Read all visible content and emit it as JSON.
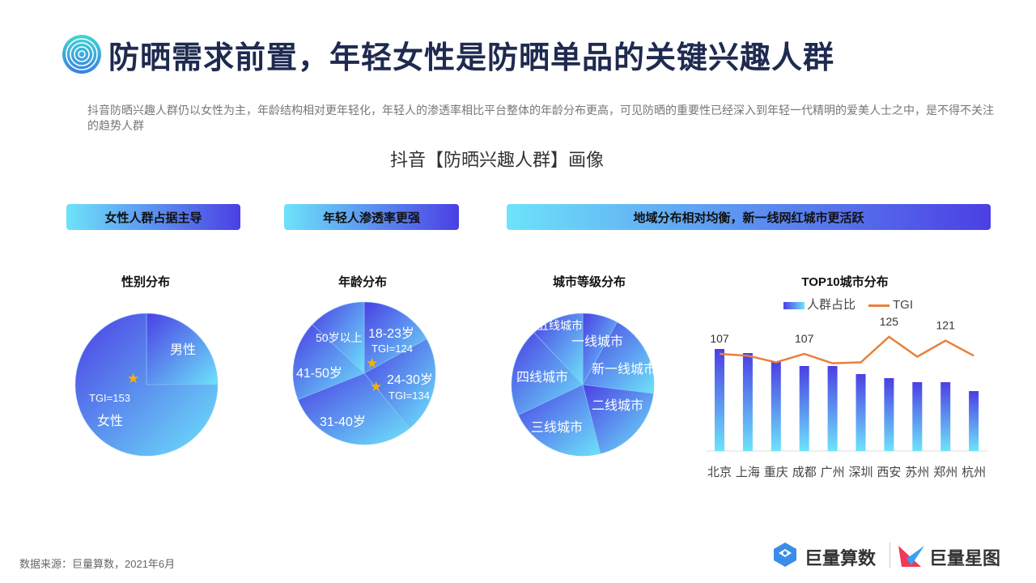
{
  "header": {
    "title": "防晒需求前置，年轻女性是防晒单品的关键兴趣人群",
    "description": "抖音防晒兴趣人群仍以女性为主，年龄结构相对更年轻化，年轻人的渗透率相比平台整体的年龄分布更高，可见防晒的重要性已经深入到年轻一代精明的爱美人士之中，是不得不关注的趋势人群",
    "subtitle": "抖音【防晒兴趣人群】画像"
  },
  "banners": [
    "女性人群占据主导",
    "年轻人渗透率更强",
    "地域分布相对均衡，新一线网红城市更活跃"
  ],
  "colors": {
    "grad_start": "#4b3fe4",
    "grad_end": "#6de3fa",
    "line": "#e8803a",
    "title": "#1e2a4f",
    "star": "#f5b400"
  },
  "chart_data": [
    {
      "type": "pie",
      "title": "性别分布",
      "categories": [
        "男性",
        "女性"
      ],
      "values": [
        25,
        75
      ],
      "annotations": [
        "TGI=153"
      ],
      "starred": [
        "女性"
      ]
    },
    {
      "type": "pie",
      "title": "年龄分布",
      "categories": [
        "18-23岁",
        "24-30岁",
        "31-40岁",
        "41-50岁",
        "50岁以上"
      ],
      "values": [
        17,
        22,
        30,
        18,
        13
      ],
      "annotations": [
        "TGI=124",
        "TGI=134"
      ],
      "starred": [
        "18-23岁",
        "24-30岁"
      ]
    },
    {
      "type": "pie",
      "title": "城市等级分布",
      "categories": [
        "一线城市",
        "新一线城市",
        "二线城市",
        "三线城市",
        "四线城市",
        "五线城市"
      ],
      "values": [
        8,
        19,
        19,
        22,
        20,
        12
      ]
    },
    {
      "type": "bar+line",
      "title": "TOP10城市分布",
      "categories": [
        "北京",
        "上海",
        "重庆",
        "成都",
        "广州",
        "深圳",
        "西安",
        "苏州",
        "郑州",
        "杭州"
      ],
      "series": [
        {
          "name": "人群占比",
          "type": "bar",
          "values": [
            12.6,
            12.1,
            11.0,
            10.5,
            10.5,
            9.5,
            9.0,
            8.5,
            8.5,
            7.4
          ]
        },
        {
          "name": "TGI",
          "type": "line",
          "values": [
            107,
            105,
            98,
            107,
            97,
            98,
            125,
            104,
            121,
            105
          ],
          "labeled": [
            "107",
            "",
            "",
            "107",
            "",
            "",
            "125",
            "",
            "121",
            ""
          ]
        }
      ],
      "legend": "top"
    }
  ],
  "footer": {
    "source": "数据来源：巨量算数，2021年6月",
    "brand1": "巨量算数",
    "brand2": "巨量星图"
  }
}
